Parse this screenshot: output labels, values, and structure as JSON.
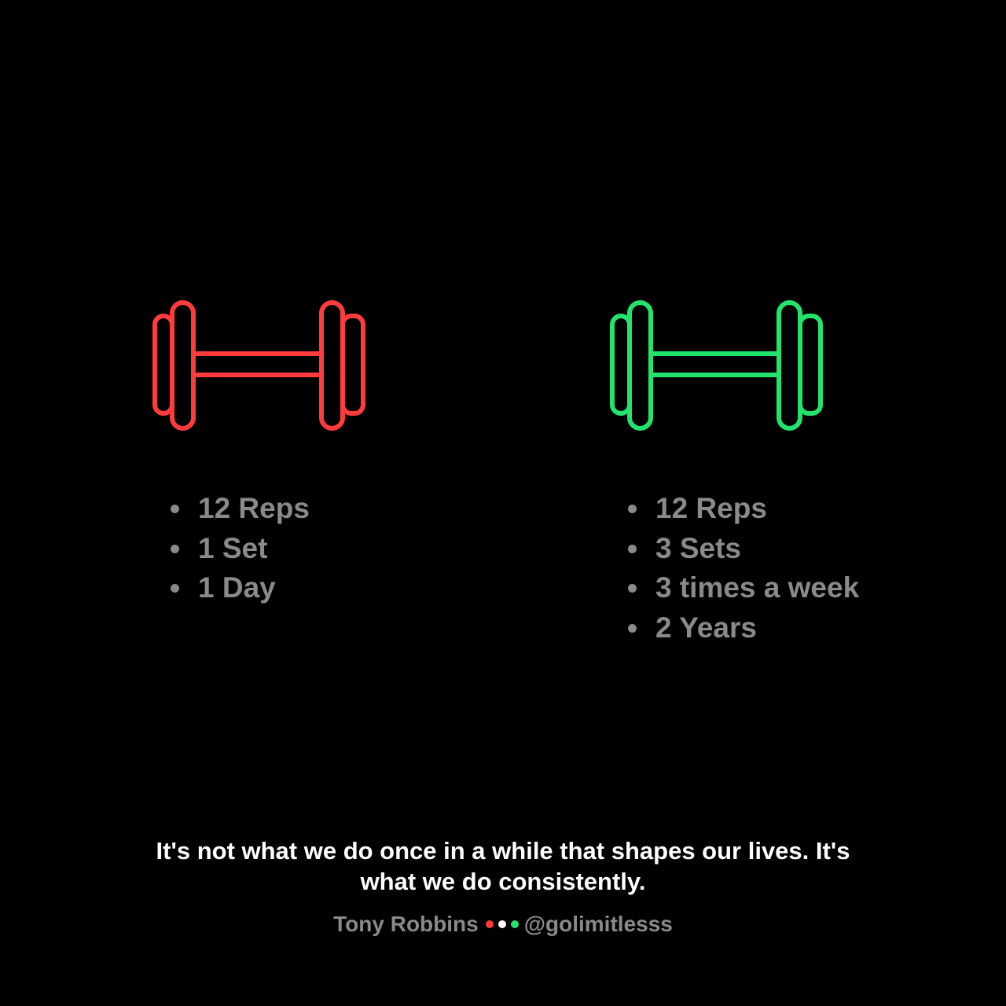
{
  "colors": {
    "background": "#000000",
    "left_accent": "#ff3b3b",
    "right_accent": "#22e36b",
    "list_text": "#8a8a8a",
    "quote_text": "#ffffff",
    "middle_dot": "#ffffff"
  },
  "left": {
    "icon": "dumbbell-icon",
    "items": [
      "12 Reps",
      "1 Set",
      "1 Day"
    ]
  },
  "right": {
    "icon": "dumbbell-icon",
    "items": [
      "12 Reps",
      "3 Sets",
      "3 times a week",
      "2 Years"
    ]
  },
  "quote": {
    "text": "It's not what we do once in a while that shapes our lives. It's what we do consistently."
  },
  "footer": {
    "author": "Tony Robbins",
    "handle": "@golimitlesss"
  }
}
